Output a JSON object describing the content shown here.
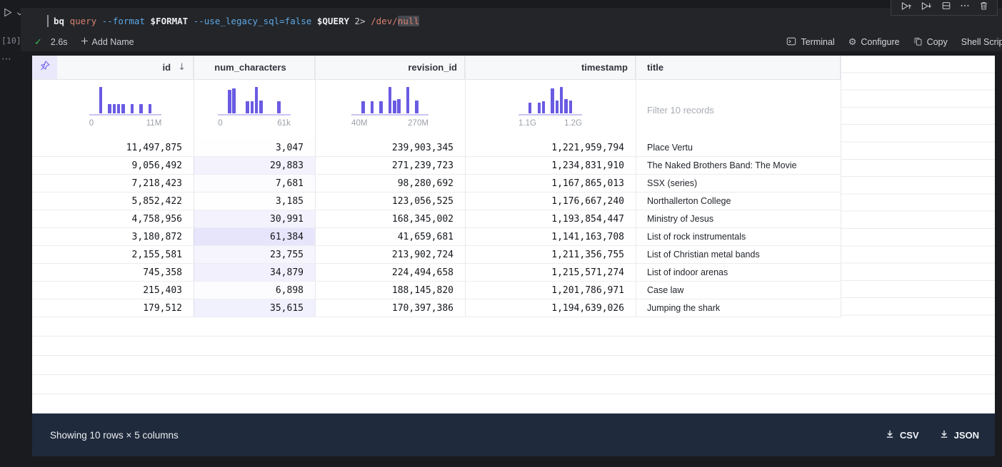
{
  "cell": {
    "execution_count": "[10]",
    "overflow_dots": "⋯",
    "command": {
      "tokens": [
        {
          "text": "bq",
          "style": "bold"
        },
        {
          "text": " ",
          "style": "plain"
        },
        {
          "text": "query",
          "style": "command"
        },
        {
          "text": " ",
          "style": "plain"
        },
        {
          "text": "--format",
          "style": "flag"
        },
        {
          "text": " ",
          "style": "plain"
        },
        {
          "text": "$FORMAT",
          "style": "bold"
        },
        {
          "text": " ",
          "style": "plain"
        },
        {
          "text": "--use_legacy_sql=false",
          "style": "flag"
        },
        {
          "text": " ",
          "style": "plain"
        },
        {
          "text": "$QUERY",
          "style": "bold"
        },
        {
          "text": " ",
          "style": "plain"
        },
        {
          "text": "2>",
          "style": "plain"
        },
        {
          "text": " ",
          "style": "plain"
        },
        {
          "text": "/dev/",
          "style": "command"
        },
        {
          "text": "null",
          "style": "command-highlight"
        }
      ]
    },
    "status": {
      "duration": "2.6s",
      "add_name_label": "Add Name"
    },
    "actions": [
      {
        "icon": "terminal-icon",
        "label": "Terminal"
      },
      {
        "icon": "gear-icon",
        "label": "Configure"
      },
      {
        "icon": "copy-icon",
        "label": "Copy"
      },
      {
        "icon": "",
        "label": "Shell Script"
      }
    ],
    "toolbar": [
      {
        "icon": "run-above-icon"
      },
      {
        "icon": "run-below-icon"
      },
      {
        "icon": "split-cell-icon"
      },
      {
        "icon": "more-icon"
      },
      {
        "icon": "trash-icon"
      }
    ]
  },
  "table": {
    "columns": [
      {
        "key": "id",
        "label": "id",
        "align": "right",
        "sort": "desc",
        "histogram": {
          "bars": [
            1,
            0,
            0.34,
            0.34,
            0.34,
            0.34,
            0,
            0.34,
            0,
            0.34,
            0,
            0.34
          ],
          "min_label": "0",
          "max_label": "11M"
        }
      },
      {
        "key": "num_characters",
        "label": "num_characters",
        "align": "center",
        "databar": true,
        "histogram": {
          "bars": [
            0.9,
            0.95,
            0,
            0,
            0.45,
            0.45,
            1,
            0.5,
            0,
            0,
            0,
            0.45
          ],
          "min_label": "0",
          "max_label": "61k"
        }
      },
      {
        "key": "revision_id",
        "label": "revision_id",
        "align": "right",
        "histogram": {
          "bars": [
            0.45,
            0,
            0.45,
            0,
            0.45,
            0,
            1,
            0.5,
            0.55,
            0,
            1,
            0,
            0.5
          ],
          "min_label": "40M",
          "max_label": "270M"
        }
      },
      {
        "key": "timestamp",
        "label": "timestamp",
        "align": "right",
        "histogram": {
          "bars": [
            0.42,
            0,
            0.42,
            0.46,
            0,
            0.95,
            0.5,
            1,
            0.55,
            0.5
          ],
          "min_label": "1.1G",
          "max_label": "1.2G"
        }
      },
      {
        "key": "title",
        "label": "title",
        "align": "left",
        "filter_placeholder": "Filter 10 records"
      }
    ],
    "num_characters_max": 61384,
    "rows": [
      {
        "id": "11,497,875",
        "num_characters": "3,047",
        "revision_id": "239,903,345",
        "timestamp": "1,221,959,794",
        "title": "Place Vertu"
      },
      {
        "id": "9,056,492",
        "num_characters": "29,883",
        "revision_id": "271,239,723",
        "timestamp": "1,234,831,910",
        "title": "The Naked Brothers Band: The Movie"
      },
      {
        "id": "7,218,423",
        "num_characters": "7,681",
        "revision_id": "98,280,692",
        "timestamp": "1,167,865,013",
        "title": "SSX (series)"
      },
      {
        "id": "5,852,422",
        "num_characters": "3,185",
        "revision_id": "123,056,525",
        "timestamp": "1,176,667,240",
        "title": "Northallerton College"
      },
      {
        "id": "4,758,956",
        "num_characters": "30,991",
        "revision_id": "168,345,002",
        "timestamp": "1,193,854,447",
        "title": "Ministry of Jesus"
      },
      {
        "id": "3,180,872",
        "num_characters": "61,384",
        "revision_id": "41,659,681",
        "timestamp": "1,141,163,708",
        "title": "List of rock instrumentals"
      },
      {
        "id": "2,155,581",
        "num_characters": "23,755",
        "revision_id": "213,902,724",
        "timestamp": "1,211,356,755",
        "title": "List of Christian metal bands"
      },
      {
        "id": "745,358",
        "num_characters": "34,879",
        "revision_id": "224,494,658",
        "timestamp": "1,215,571,274",
        "title": "List of indoor arenas"
      },
      {
        "id": "215,403",
        "num_characters": "6,898",
        "revision_id": "188,145,820",
        "timestamp": "1,201,786,971",
        "title": "Case law"
      },
      {
        "id": "179,512",
        "num_characters": "35,615",
        "revision_id": "170,397,386",
        "timestamp": "1,194,639,026",
        "title": "Jumping the shark"
      }
    ]
  },
  "footer": {
    "summary": "Showing 10 rows × 5 columns",
    "download_buttons": [
      {
        "icon": "download-icon",
        "label": "CSV"
      },
      {
        "icon": "download-icon",
        "label": "JSON"
      }
    ]
  },
  "colors": {
    "accent_purple": "#6a5be3",
    "databar_tint": "#6c5ce7",
    "pin_bg": "#e9e9fb",
    "header_bg": "#f7f8fa",
    "footer_bg": "#1f2a3c",
    "success_green": "#3fb950",
    "syntax_command": "#d8826f",
    "syntax_flag": "#5ea8e5",
    "cell_panel_bg": "#232529"
  }
}
